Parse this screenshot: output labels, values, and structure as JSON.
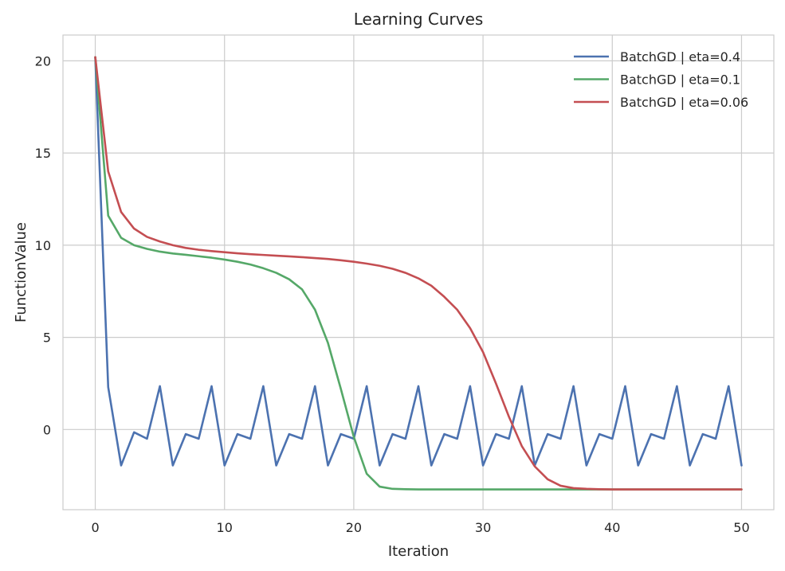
{
  "chart_data": {
    "type": "line",
    "title": "Learning Curves",
    "xlabel": "Iteration",
    "ylabel": "FunctionValue",
    "xlim": [
      -2.5,
      52.5
    ],
    "ylim": [
      -4.35,
      21.4
    ],
    "xticks": [
      0,
      10,
      20,
      30,
      40,
      50
    ],
    "yticks": [
      0,
      5,
      10,
      15,
      20
    ],
    "grid": true,
    "legend_position": "top-right",
    "x": [
      0,
      1,
      2,
      3,
      4,
      5,
      6,
      7,
      8,
      9,
      10,
      11,
      12,
      13,
      14,
      15,
      16,
      17,
      18,
      19,
      20,
      21,
      22,
      23,
      24,
      25,
      26,
      27,
      28,
      29,
      30,
      31,
      32,
      33,
      34,
      35,
      36,
      37,
      38,
      39,
      40,
      41,
      42,
      43,
      44,
      45,
      46,
      47,
      48,
      49,
      50
    ],
    "series": [
      {
        "name": "BatchGD | eta=0.4",
        "color": "#4c72b0",
        "values": [
          20.2,
          2.3,
          -1.95,
          -0.15,
          -0.5,
          2.35,
          -1.95,
          -0.25,
          -0.5,
          2.35,
          -1.95,
          -0.25,
          -0.5,
          2.35,
          -1.95,
          -0.25,
          -0.5,
          2.35,
          -1.95,
          -0.25,
          -0.5,
          2.35,
          -1.95,
          -0.25,
          -0.5,
          2.35,
          -1.95,
          -0.25,
          -0.5,
          2.35,
          -1.95,
          -0.25,
          -0.5,
          2.35,
          -1.95,
          -0.25,
          -0.5,
          2.35,
          -1.95,
          -0.25,
          -0.5,
          2.35,
          -1.95,
          -0.25,
          -0.5,
          2.35,
          -1.95,
          -0.25,
          -0.5,
          2.35,
          -1.95
        ]
      },
      {
        "name": "BatchGD | eta=0.1",
        "color": "#55a868",
        "values": [
          20.2,
          11.6,
          10.4,
          10.0,
          9.8,
          9.65,
          9.55,
          9.48,
          9.4,
          9.32,
          9.22,
          9.1,
          8.95,
          8.75,
          8.5,
          8.15,
          7.6,
          6.5,
          4.7,
          2.2,
          -0.4,
          -2.4,
          -3.1,
          -3.22,
          -3.24,
          -3.25,
          -3.25,
          -3.25,
          -3.25,
          -3.25,
          -3.25,
          -3.25,
          -3.25,
          -3.25,
          -3.25,
          -3.25,
          -3.25,
          -3.25,
          -3.25,
          -3.25,
          -3.25,
          -3.25,
          -3.25,
          -3.25,
          -3.25,
          -3.25,
          -3.25,
          -3.25,
          -3.25,
          -3.25,
          -3.25
        ]
      },
      {
        "name": "BatchGD | eta=0.06",
        "color": "#c44e52",
        "values": [
          20.2,
          14.0,
          11.8,
          10.9,
          10.45,
          10.2,
          10.0,
          9.85,
          9.75,
          9.68,
          9.62,
          9.56,
          9.51,
          9.47,
          9.43,
          9.39,
          9.35,
          9.3,
          9.25,
          9.18,
          9.1,
          9.0,
          8.88,
          8.72,
          8.5,
          8.2,
          7.8,
          7.2,
          6.5,
          5.5,
          4.2,
          2.5,
          0.7,
          -0.9,
          -2.0,
          -2.7,
          -3.05,
          -3.18,
          -3.22,
          -3.24,
          -3.25,
          -3.25,
          -3.25,
          -3.25,
          -3.25,
          -3.25,
          -3.25,
          -3.25,
          -3.25,
          -3.25,
          -3.25
        ]
      }
    ]
  }
}
